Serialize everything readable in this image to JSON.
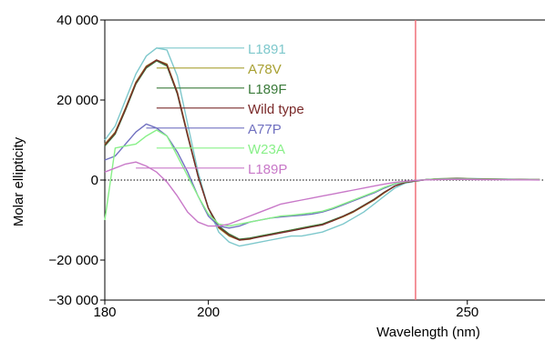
{
  "chart_data": {
    "type": "line",
    "title": "",
    "xlabel": "Wavelength (nm)",
    "ylabel": "Molar ellipticity",
    "xlim": [
      180,
      265
    ],
    "ylim": [
      -30000,
      40000
    ],
    "x_ticks": [
      180,
      200,
      250
    ],
    "x_tick_labels": [
      "180",
      "200",
      "250"
    ],
    "y_ticks": [
      40000,
      20000,
      0,
      -20000,
      -30000
    ],
    "y_tick_labels": [
      "40 000",
      "20 000",
      "0",
      "−20 000",
      "−30 000"
    ],
    "grid": false,
    "zero_line": "dotted",
    "legend_placement": "inline labels to the right of peaks",
    "reference_line": {
      "x": 240,
      "color": "#f0707a"
    },
    "x": [
      180,
      182,
      184,
      186,
      188,
      190,
      192,
      194,
      196,
      198,
      200,
      202,
      204,
      206,
      208,
      210,
      212,
      214,
      216,
      218,
      220,
      222,
      224,
      226,
      228,
      230,
      232,
      234,
      236,
      238,
      240,
      242,
      244,
      246,
      248,
      250,
      252,
      254,
      256,
      258,
      260,
      262,
      264
    ],
    "series": [
      {
        "name": "L1891",
        "color": "#7ec8cc",
        "label_y": 33000,
        "values": [
          10000,
          13500,
          20000,
          26500,
          31000,
          33000,
          32500,
          26000,
          14000,
          2000,
          -7000,
          -13000,
          -15500,
          -16500,
          -16000,
          -15500,
          -15000,
          -14500,
          -14000,
          -14000,
          -13500,
          -13000,
          -12000,
          -11000,
          -9500,
          -8000,
          -6000,
          -4000,
          -2000,
          -800,
          -300,
          100,
          300,
          400,
          450,
          400,
          350,
          300,
          250,
          200,
          150,
          100,
          80
        ]
      },
      {
        "name": "A78V",
        "color": "#a8a032",
        "label_y": 28000,
        "values": [
          9000,
          12000,
          18000,
          24500,
          28500,
          30000,
          29000,
          22000,
          11500,
          1000,
          -7000,
          -12000,
          -14000,
          -15000,
          -14800,
          -14000,
          -13500,
          -13000,
          -12500,
          -12000,
          -11500,
          -11000,
          -10200,
          -9200,
          -8000,
          -6500,
          -5000,
          -3200,
          -1500,
          -600,
          -200,
          100,
          300,
          350,
          400,
          350,
          300,
          250,
          200,
          180,
          150,
          100,
          80
        ]
      },
      {
        "name": "L189F",
        "color": "#3a7a3a",
        "label_y": 23000,
        "values": [
          8500,
          11500,
          17500,
          24000,
          28000,
          29800,
          28500,
          21500,
          11000,
          1000,
          -7000,
          -11500,
          -13500,
          -14800,
          -14500,
          -14000,
          -13500,
          -13000,
          -12500,
          -12000,
          -11500,
          -11000,
          -10000,
          -9000,
          -7800,
          -6300,
          -4800,
          -3000,
          -1500,
          -600,
          -200,
          100,
          250,
          300,
          350,
          300,
          280,
          250,
          200,
          180,
          150,
          100,
          80
        ]
      },
      {
        "name": "Wild type",
        "color": "#7a2a2a",
        "label_y": 18000,
        "values": [
          8800,
          11800,
          17800,
          24300,
          28300,
          30000,
          28800,
          21800,
          11200,
          1000,
          -7000,
          -11800,
          -13800,
          -15000,
          -14700,
          -14200,
          -13700,
          -13200,
          -12700,
          -12200,
          -11700,
          -11200,
          -10200,
          -9100,
          -7900,
          -6400,
          -4900,
          -3100,
          -1500,
          -600,
          -200,
          100,
          250,
          300,
          350,
          300,
          280,
          250,
          200,
          180,
          150,
          100,
          80
        ]
      },
      {
        "name": "A77P",
        "color": "#7070c0",
        "label_y": 13000,
        "values": [
          5000,
          6000,
          9000,
          12000,
          14000,
          13000,
          11000,
          7000,
          2000,
          -4000,
          -9000,
          -11500,
          -12000,
          -11500,
          -10500,
          -10000,
          -9500,
          -9200,
          -9000,
          -8800,
          -8500,
          -8000,
          -7200,
          -6200,
          -5200,
          -4200,
          -3200,
          -2000,
          -1000,
          -400,
          -100,
          100,
          200,
          250,
          250,
          250,
          200,
          180,
          150,
          120,
          100,
          80,
          60
        ]
      },
      {
        "name": "W23A",
        "color": "#88f088",
        "label_y": 8000,
        "values": [
          -10000,
          8000,
          8500,
          9000,
          11000,
          12500,
          11000,
          6000,
          1000,
          -4000,
          -8500,
          -11000,
          -11500,
          -11000,
          -10500,
          -10000,
          -9500,
          -9000,
          -8800,
          -8500,
          -8200,
          -7800,
          -7000,
          -6000,
          -5000,
          -4000,
          -3000,
          -1800,
          -900,
          -400,
          -100,
          100,
          200,
          250,
          250,
          250,
          200,
          180,
          150,
          120,
          100,
          80,
          60
        ]
      },
      {
        "name": "L189P",
        "color": "#c878c8",
        "label_y": 3000,
        "values": [
          2000,
          3000,
          4000,
          4500,
          3500,
          2000,
          -500,
          -4000,
          -8000,
          -10500,
          -11500,
          -11500,
          -11000,
          -10000,
          -9000,
          -8000,
          -7000,
          -6000,
          -5500,
          -5000,
          -4500,
          -4000,
          -3500,
          -3000,
          -2500,
          -2000,
          -1500,
          -1000,
          -600,
          -300,
          -100,
          50,
          100,
          150,
          150,
          150,
          120,
          100,
          80,
          60,
          50,
          40,
          30
        ]
      }
    ]
  }
}
